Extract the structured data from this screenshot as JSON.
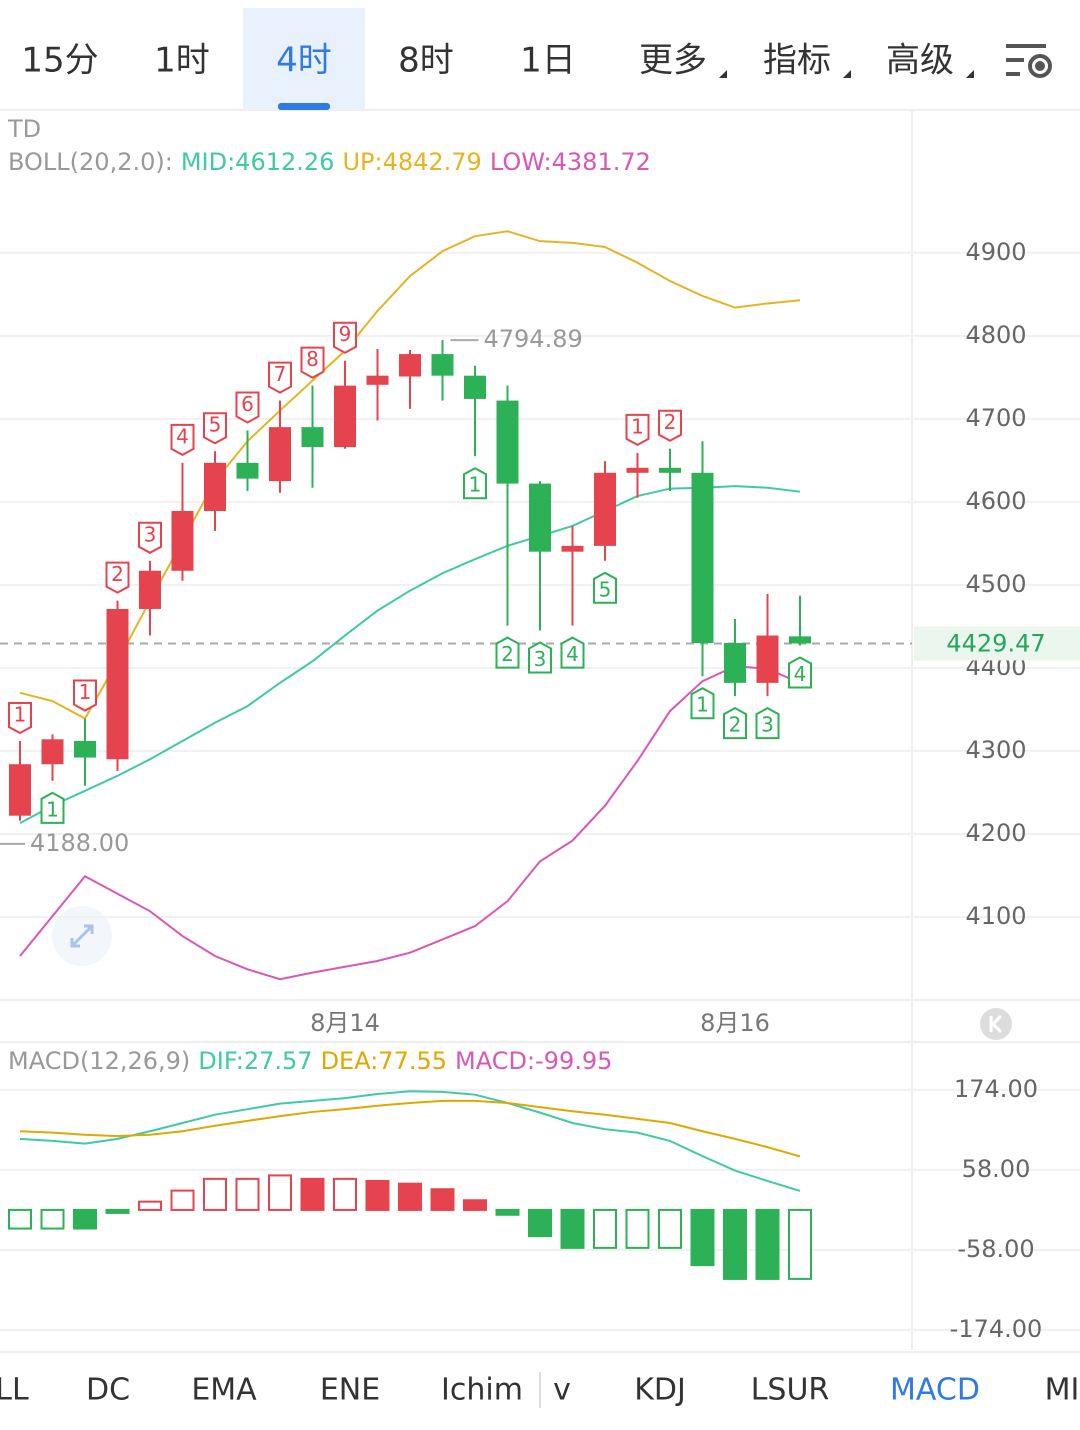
{
  "tabs": [
    {
      "label": "15分"
    },
    {
      "label": "1时"
    },
    {
      "label": "4时",
      "active": true
    },
    {
      "label": "8时"
    },
    {
      "label": "1日"
    },
    {
      "label": "更多",
      "menu": true
    },
    {
      "label": "指标",
      "menu": true
    },
    {
      "label": "高级",
      "menu": true
    }
  ],
  "chart_data": [
    {
      "type": "candlestick",
      "header": "TD",
      "indicator": "BOLL(20,2.0):",
      "categories": [
        null,
        null,
        null,
        null,
        null,
        null,
        null,
        null,
        null,
        null,
        "8月14",
        null,
        null,
        null,
        null,
        null,
        null,
        null,
        null,
        null,
        null,
        null,
        "8月16",
        null,
        null
      ],
      "open": [
        4222,
        4284,
        4312,
        4290,
        4471,
        4517,
        4589,
        4647,
        4625,
        4690,
        4666,
        4741,
        4751,
        4778,
        4752,
        4722,
        4622,
        4540,
        4547,
        4635,
        4641,
        4635,
        4430,
        4382,
        4438
      ],
      "high": [
        4312,
        4320,
        4339,
        4481,
        4529,
        4647,
        4661,
        4686,
        4722,
        4740,
        4770,
        4784,
        4783,
        4794.89,
        4764,
        4740,
        4625,
        4571,
        4649,
        4659,
        4664,
        4673,
        4459,
        4489,
        4487
      ],
      "low": [
        4216,
        4264,
        4258,
        4276,
        4439,
        4505,
        4565,
        4613,
        4611,
        4617,
        4664,
        4698,
        4712,
        4722,
        4655,
        4451,
        4445,
        4451,
        4529,
        4605,
        4613,
        4390,
        4366,
        4366,
        4427
      ],
      "close": [
        4284,
        4314,
        4292,
        4471,
        4517,
        4589,
        4647,
        4628,
        4690,
        4666,
        4740,
        4752,
        4778,
        4752,
        4724,
        4622,
        4540,
        4547,
        4635,
        4641,
        4635,
        4430,
        4382,
        4439,
        4429.47
      ],
      "up_color": "#e5434e",
      "down_color": "#2cb157",
      "td_above": [
        "1",
        null,
        "1",
        "2",
        "3",
        "4",
        "5",
        "6",
        "7",
        "8",
        "9",
        null,
        null,
        null,
        null,
        null,
        null,
        null,
        null,
        "1",
        "2",
        null,
        null,
        null,
        null
      ],
      "td_below": [
        null,
        "1",
        null,
        null,
        null,
        null,
        null,
        null,
        null,
        null,
        null,
        null,
        null,
        null,
        "1",
        "2",
        "3",
        "4",
        "5",
        null,
        null,
        "1",
        "2",
        "3",
        "4"
      ],
      "series": [
        {
          "name": "MID:4612.26",
          "color": "#3fc9a5",
          "values": [
            4213,
            4234,
            4252,
            4270,
            4290,
            4312,
            4334,
            4354,
            4382,
            4408,
            4439,
            4469,
            4493,
            4514,
            4531,
            4547,
            4559,
            4571,
            4589,
            4607,
            4616,
            4617,
            4619,
            4617,
            4612.26
          ]
        },
        {
          "name": "UP:4842.79",
          "color": "#e6b422",
          "values": [
            4370,
            4360,
            4339,
            4408,
            4481,
            4553,
            4625,
            4673,
            4710,
            4746,
            4782,
            4830,
            4872,
            4902,
            4920,
            4926,
            4914,
            4912,
            4907,
            4888,
            4866,
            4848,
            4834,
            4839,
            4842.79
          ]
        },
        {
          "name": "LOW:4381.72",
          "color": "#d957b5",
          "values": [
            4053,
            4101,
            4149,
            4128,
            4107,
            4077,
            4053,
            4037,
            4025,
            4033,
            4040,
            4047,
            4057,
            4073,
            4089,
            4119,
            4167,
            4192,
            4234,
            4288,
            4348,
            4384,
            4402,
            4399,
            4381.72
          ]
        }
      ],
      "ylim": [
        4000,
        5072
      ],
      "yticks": [
        4100,
        4200,
        4300,
        4400,
        4500,
        4600,
        4700,
        4800,
        4900
      ],
      "grid": true,
      "annotations": [
        {
          "value": 4794.89,
          "label": "4794.89"
        },
        {
          "value": 4188,
          "label": "4188.00"
        }
      ],
      "last_price": {
        "value": 4429.47,
        "label": "4429.47"
      }
    },
    {
      "type": "macd",
      "indicator": "MACD(12,26,9)",
      "histogram": {
        "name": "MACD:-99.95",
        "values": [
          -27,
          -27,
          -27,
          -3,
          12,
          28,
          45,
          45,
          50,
          45,
          45,
          42,
          38,
          30,
          14,
          -7,
          -38,
          -55,
          -55,
          -55,
          -55,
          -80,
          -100,
          -100,
          -99.95
        ],
        "hollow": [
          true,
          true,
          false,
          false,
          true,
          true,
          true,
          true,
          true,
          false,
          true,
          false,
          false,
          false,
          false,
          false,
          false,
          false,
          true,
          true,
          true,
          false,
          false,
          false,
          true
        ]
      },
      "up_color": "#e5434e",
      "down_color": "#2cb157",
      "series": [
        {
          "name": "DIF:27.57",
          "color": "#3fc9a5",
          "values": [
            103,
            100,
            96,
            103,
            114,
            126,
            138,
            146,
            154,
            158,
            162,
            168,
            172,
            171,
            167,
            155,
            141,
            126,
            117,
            112,
            100,
            78,
            57,
            42,
            27.57
          ]
        },
        {
          "name": "DEA:77.55",
          "color": "#e0a800",
          "values": [
            114,
            112,
            109,
            107,
            109,
            114,
            122,
            129,
            136,
            142,
            146,
            151,
            155,
            158,
            158,
            155,
            149,
            143,
            138,
            132,
            126,
            114,
            103,
            91,
            77.55
          ]
        }
      ],
      "legend_color": "#d957b5",
      "ylim": [
        -203,
        239
      ],
      "yticks": [
        {
          "value": -174,
          "label": "-174.00"
        },
        {
          "value": -58,
          "label": "-58.00"
        },
        {
          "value": 58,
          "label": "58.00"
        },
        {
          "value": 174,
          "label": "174.00"
        }
      ],
      "grid": true
    }
  ],
  "indicator_tabs": [
    {
      "label": "LL"
    },
    {
      "label": "DC"
    },
    {
      "label": "EMA"
    },
    {
      "label": "ENE"
    },
    {
      "label": "Ichim"
    },
    {
      "label": "v"
    },
    {
      "label": "KDJ"
    },
    {
      "label": "LSUR"
    },
    {
      "label": "MACD",
      "active": true
    },
    {
      "label": "MI"
    }
  ]
}
